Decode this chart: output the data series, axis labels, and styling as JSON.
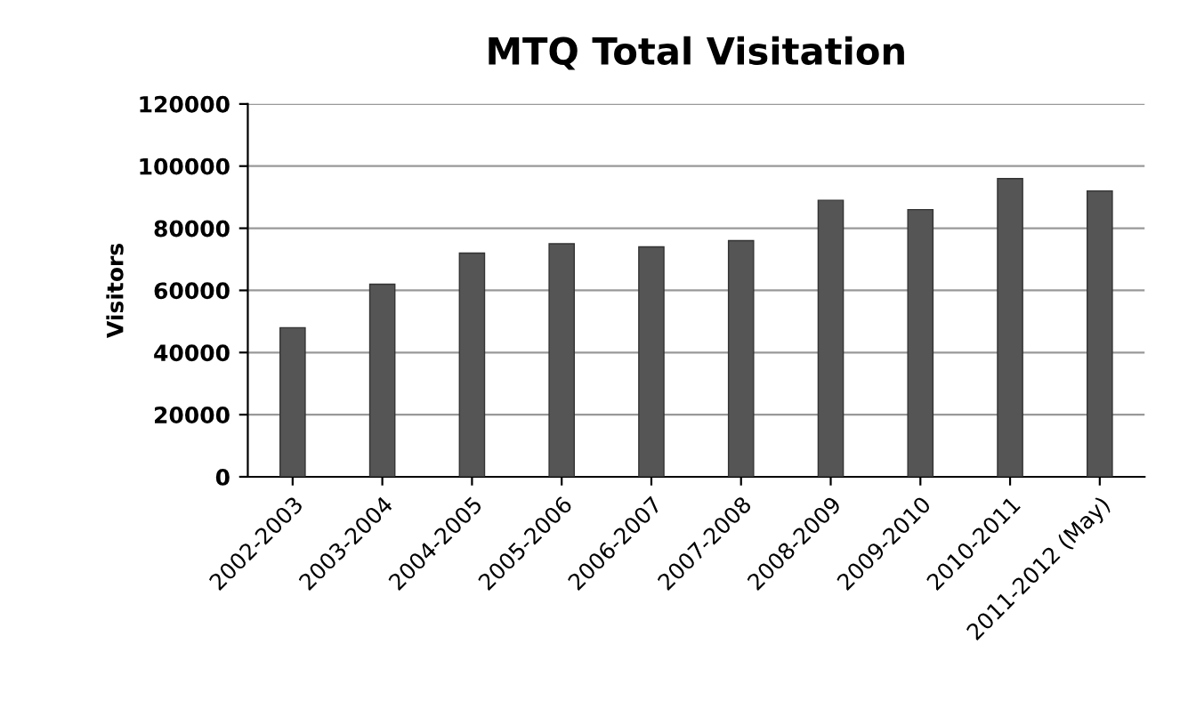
{
  "chart_data": {
    "type": "bar",
    "title": "MTQ Total Visitation",
    "ylabel": "Visitors",
    "categories": [
      "2002-2003",
      "2003-2004",
      "2004-2005",
      "2005-2006",
      "2006-2007",
      "2007-2008",
      "2008-2009",
      "2009-2010",
      "2010-2011",
      "2011-2012 (May)"
    ],
    "values": [
      48000,
      62000,
      72000,
      75000,
      74000,
      76000,
      89000,
      86000,
      96000,
      92000
    ],
    "color": "#555555",
    "ylim": [
      0,
      120000
    ],
    "yticks": [
      0,
      20000,
      40000,
      60000,
      80000,
      100000,
      120000
    ],
    "grid": "y"
  }
}
